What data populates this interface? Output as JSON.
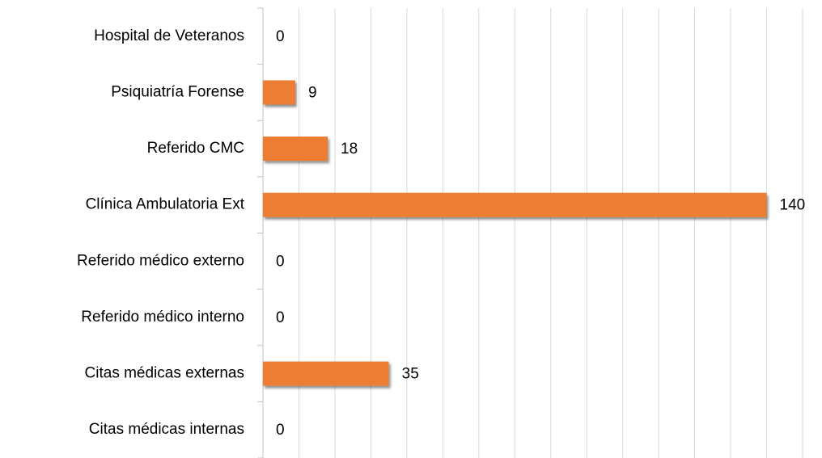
{
  "chart_data": {
    "type": "bar",
    "orientation": "horizontal",
    "categories": [
      "Hospital de Veteranos",
      "Psiquiatría Forense",
      "Referido CMC",
      "Clínica Ambulatoria Ext",
      "Referido médico externo",
      "Referido médico interno",
      "Citas médicas externas",
      "Citas médicas internas"
    ],
    "values": [
      0,
      9,
      18,
      140,
      0,
      0,
      35,
      0
    ],
    "color": "#ed7d31",
    "xlim": [
      0,
      150
    ],
    "xticks": [
      0,
      10,
      20,
      30,
      40,
      50,
      60,
      70,
      80,
      90,
      100,
      110,
      120,
      130,
      140,
      150
    ],
    "grid": true
  }
}
